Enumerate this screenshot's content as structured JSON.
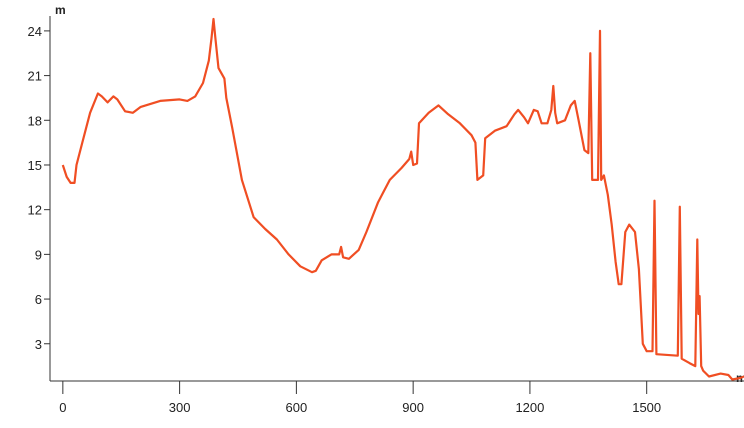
{
  "chart_data": {
    "type": "line",
    "y_unit": "m",
    "x_unit": "m",
    "xlim": [
      -33,
      1750
    ],
    "ylim": [
      0.5,
      25
    ],
    "xticks": [
      0,
      300,
      600,
      900,
      1200,
      1500
    ],
    "yticks": [
      3,
      6,
      9,
      12,
      15,
      18,
      21,
      24
    ],
    "series": [
      {
        "color": "#f04e23",
        "x": [
          0,
          10,
          20,
          30,
          35,
          50,
          70,
          90,
          100,
          115,
          130,
          140,
          160,
          180,
          200,
          250,
          300,
          320,
          340,
          360,
          375,
          382,
          387,
          392,
          400,
          415,
          420,
          435,
          460,
          490,
          520,
          550,
          580,
          610,
          640,
          650,
          665,
          690,
          710,
          715,
          720,
          735,
          760,
          780,
          810,
          840,
          870,
          890,
          895,
          900,
          910,
          915,
          940,
          965,
          990,
          1020,
          1050,
          1060,
          1065,
          1080,
          1085,
          1110,
          1140,
          1160,
          1170,
          1185,
          1195,
          1210,
          1220,
          1230,
          1245,
          1255,
          1260,
          1265,
          1270,
          1290,
          1305,
          1315,
          1325,
          1340,
          1350,
          1355,
          1360,
          1375,
          1380,
          1383,
          1390,
          1400,
          1410,
          1420,
          1428,
          1435,
          1445,
          1455,
          1470,
          1480,
          1490,
          1500,
          1515,
          1520,
          1525,
          1580,
          1585,
          1590,
          1610,
          1625,
          1630,
          1633,
          1636,
          1640,
          1645,
          1660,
          1690,
          1710,
          1720,
          1740,
          1750
        ],
        "values": [
          15,
          14.2,
          13.8,
          13.8,
          15,
          16.5,
          18.5,
          19.8,
          19.6,
          19.2,
          19.6,
          19.4,
          18.6,
          18.5,
          18.9,
          19.3,
          19.4,
          19.3,
          19.6,
          20.5,
          22,
          23.5,
          24.8,
          23.5,
          21.5,
          20.8,
          19.5,
          17.5,
          14,
          11.5,
          10.7,
          10,
          9,
          8.2,
          7.8,
          7.9,
          8.6,
          9,
          9,
          9.5,
          8.8,
          8.7,
          9.3,
          10.5,
          12.5,
          14,
          14.8,
          15.4,
          15.9,
          15,
          15.1,
          17.8,
          18.5,
          19,
          18.4,
          17.8,
          17,
          16.5,
          14,
          14.3,
          16.8,
          17.3,
          17.6,
          18.4,
          18.7,
          18.2,
          17.8,
          18.7,
          18.6,
          17.8,
          17.8,
          18.7,
          20.3,
          18.5,
          17.8,
          18,
          19,
          19.3,
          18,
          16,
          15.8,
          22.5,
          14,
          14,
          24,
          14,
          14.3,
          13,
          11,
          8.5,
          7,
          7,
          10.5,
          11,
          10.5,
          8,
          3,
          2.5,
          2.5,
          12.6,
          2.3,
          2.2,
          12.2,
          2,
          1.7,
          1.5,
          10,
          5,
          6.2,
          1.5,
          1.2,
          0.8,
          1,
          0.9,
          0.6,
          0.7,
          0.8
        ]
      }
    ]
  }
}
